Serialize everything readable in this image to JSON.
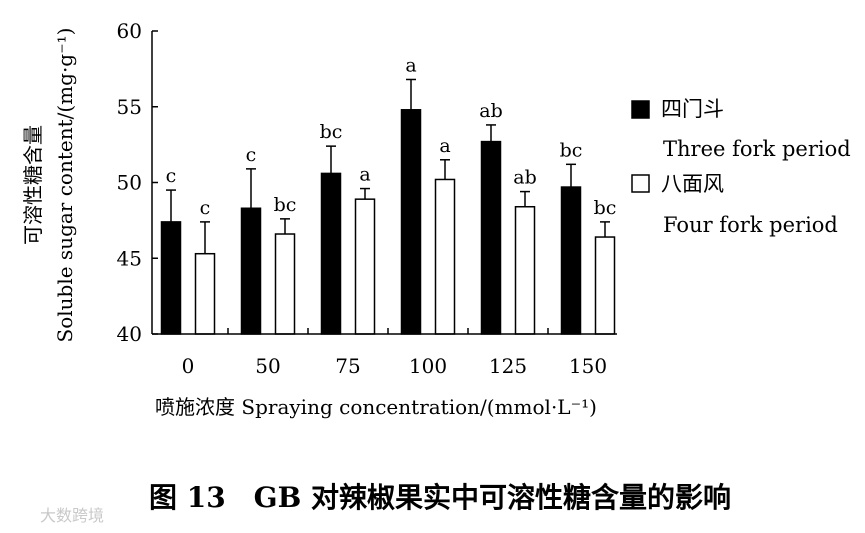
{
  "chart_data": {
    "type": "bar",
    "categories": [
      "0",
      "50",
      "75",
      "100",
      "125",
      "150"
    ],
    "series": [
      {
        "name": "四门斗",
        "name_en": "Three fork period",
        "color": "#000000",
        "values": [
          47.4,
          48.3,
          50.6,
          54.8,
          52.7,
          49.7
        ],
        "errors": [
          2.1,
          2.6,
          1.8,
          2.0,
          1.1,
          1.5
        ],
        "labels": [
          "c",
          "c",
          "bc",
          "a",
          "ab",
          "bc"
        ]
      },
      {
        "name": "八面风",
        "name_en": "Four fork period",
        "color": "#ffffff",
        "values": [
          45.3,
          46.6,
          48.9,
          50.2,
          48.4,
          46.4
        ],
        "errors": [
          2.1,
          1.0,
          0.7,
          1.3,
          1.0,
          1.0
        ],
        "labels": [
          "c",
          "bc",
          "a",
          "a",
          "ab",
          "bc"
        ]
      }
    ],
    "ylim": [
      40,
      60
    ],
    "yticks": [
      "40",
      "45",
      "50",
      "55",
      "60"
    ],
    "ylabel": "可溶性糖含量",
    "ylabel_en": "Soluble sugar content/(mg·g⁻¹)",
    "xlabel": "喷施浓度 Spraying concentration/(mmol·L⁻¹)",
    "legend_position": "right",
    "grid": false
  },
  "caption": "图 13　GB 对辣椒果实中可溶性糖含量的影响",
  "watermark": "大数跨境"
}
